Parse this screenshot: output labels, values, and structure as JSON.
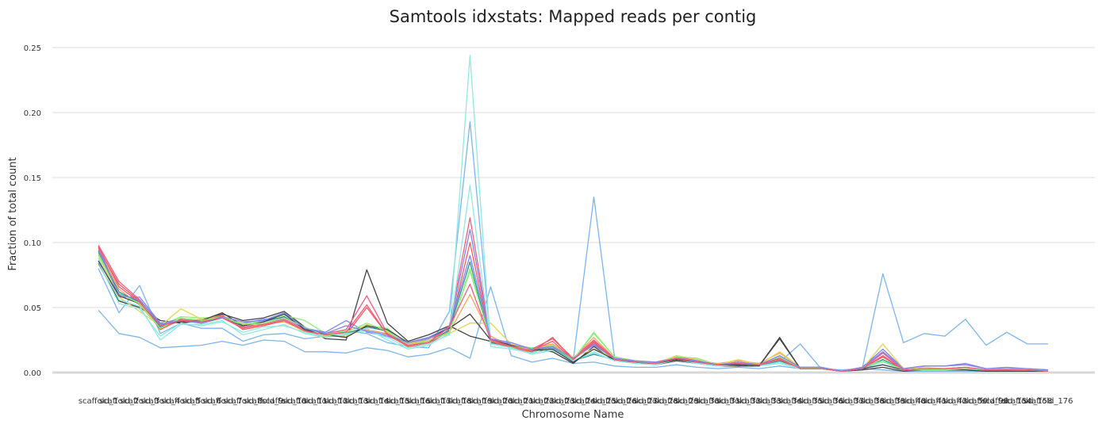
{
  "chart_data": {
    "type": "line",
    "title": "Samtools idxstats: Mapped reads per contig",
    "xlabel": "Chromosome Name",
    "ylabel": "Fraction of total count",
    "ylim": [
      0,
      0.25
    ],
    "yticks": [
      "0.00",
      "0.05",
      "0.10",
      "0.15",
      "0.20",
      "0.25"
    ],
    "grid": true,
    "legend": "none",
    "categories": [
      "scaffold_1",
      "scaffold_2",
      "scaffold_3",
      "scaffold_4",
      "scaffold_5",
      "scaffold_6",
      "scaffold_7",
      "scaffold_8",
      "scaffold_9",
      "scaffold_10",
      "scaffold_11",
      "scaffold_12",
      "scaffold_13",
      "scaffold_14",
      "scaffold_15",
      "scaffold_16",
      "scaffold_17",
      "scaffold_18",
      "scaffold_19",
      "scaffold_20",
      "scaffold_21",
      "scaffold_22",
      "scaffold_23",
      "scaffold_24",
      "scaffold_25",
      "scaffold_26",
      "scaffold_27",
      "scaffold_28",
      "scaffold_29",
      "scaffold_30",
      "scaffold_31",
      "scaffold_32",
      "scaffold_33",
      "scaffold_34",
      "scaffold_35",
      "scaffold_36",
      "scaffold_37",
      "scaffold_38",
      "scaffold_39",
      "scaffold_40",
      "scaffold_41",
      "scaffold_42",
      "scaffold_59",
      "scaffold_98",
      "scaffold_154",
      "scaffold_158",
      "scaffold_176"
    ],
    "series": [
      {
        "color": "#7cb5ec",
        "values": [
          0.048,
          0.03,
          0.027,
          0.019,
          0.02,
          0.021,
          0.024,
          0.021,
          0.025,
          0.024,
          0.016,
          0.016,
          0.015,
          0.019,
          0.017,
          0.012,
          0.014,
          0.019,
          0.011,
          0.066,
          0.013,
          0.008,
          0.011,
          0.007,
          0.008,
          0.005,
          0.004,
          0.004,
          0.006,
          0.004,
          0.003,
          0.004,
          0.003,
          0.005,
          0.003,
          0.004,
          0.001,
          0.003,
          0.002,
          0.001,
          0.001,
          0.001,
          0.001,
          0.001,
          0.001,
          0.001,
          0.001
        ]
      },
      {
        "color": "#7cb5ec",
        "values": [
          0.08,
          0.046,
          0.067,
          0.03,
          0.038,
          0.034,
          0.034,
          0.024,
          0.029,
          0.03,
          0.026,
          0.028,
          0.032,
          0.03,
          0.023,
          0.02,
          0.019,
          0.047,
          0.193,
          0.025,
          0.02,
          0.015,
          0.022,
          0.009,
          0.135,
          0.012,
          0.008,
          0.007,
          0.01,
          0.008,
          0.006,
          0.005,
          0.006,
          0.008,
          0.022,
          0.003,
          0.002,
          0.003,
          0.076,
          0.023,
          0.03,
          0.028,
          0.041,
          0.021,
          0.031,
          0.022,
          0.022
        ]
      },
      {
        "color": "#434348",
        "values": [
          0.084,
          0.055,
          0.05,
          0.04,
          0.038,
          0.04,
          0.045,
          0.04,
          0.042,
          0.047,
          0.035,
          0.026,
          0.025,
          0.079,
          0.038,
          0.024,
          0.029,
          0.036,
          0.028,
          0.024,
          0.02,
          0.018,
          0.016,
          0.007,
          0.02,
          0.009,
          0.008,
          0.006,
          0.009,
          0.007,
          0.005,
          0.005,
          0.005,
          0.027,
          0.003,
          0.003,
          0.001,
          0.002,
          0.004,
          0.001,
          0.002,
          0.002,
          0.002,
          0.001,
          0.001,
          0.001,
          0.001
        ]
      },
      {
        "color": "#90ed7d",
        "values": [
          0.092,
          0.06,
          0.055,
          0.036,
          0.043,
          0.042,
          0.043,
          0.037,
          0.04,
          0.044,
          0.04,
          0.03,
          0.032,
          0.036,
          0.034,
          0.022,
          0.025,
          0.03,
          0.08,
          0.024,
          0.021,
          0.019,
          0.021,
          0.01,
          0.031,
          0.012,
          0.009,
          0.007,
          0.012,
          0.011,
          0.006,
          0.008,
          0.006,
          0.011,
          0.004,
          0.003,
          0.001,
          0.004,
          0.008,
          0.002,
          0.002,
          0.002,
          0.003,
          0.002,
          0.002,
          0.002,
          0.001
        ]
      },
      {
        "color": "#f7a35c",
        "values": [
          0.095,
          0.064,
          0.052,
          0.034,
          0.04,
          0.041,
          0.044,
          0.034,
          0.037,
          0.039,
          0.032,
          0.029,
          0.031,
          0.033,
          0.03,
          0.022,
          0.024,
          0.031,
          0.06,
          0.028,
          0.02,
          0.018,
          0.022,
          0.011,
          0.027,
          0.011,
          0.009,
          0.008,
          0.012,
          0.009,
          0.007,
          0.009,
          0.007,
          0.015,
          0.004,
          0.004,
          0.001,
          0.004,
          0.012,
          0.002,
          0.003,
          0.003,
          0.004,
          0.002,
          0.002,
          0.002,
          0.001
        ]
      },
      {
        "color": "#8085e9",
        "values": [
          0.097,
          0.058,
          0.058,
          0.038,
          0.041,
          0.039,
          0.042,
          0.038,
          0.041,
          0.042,
          0.034,
          0.031,
          0.04,
          0.031,
          0.028,
          0.022,
          0.026,
          0.034,
          0.11,
          0.025,
          0.022,
          0.017,
          0.019,
          0.01,
          0.022,
          0.01,
          0.008,
          0.008,
          0.011,
          0.009,
          0.006,
          0.007,
          0.006,
          0.012,
          0.004,
          0.004,
          0.001,
          0.004,
          0.018,
          0.003,
          0.005,
          0.005,
          0.007,
          0.003,
          0.004,
          0.003,
          0.002
        ]
      },
      {
        "color": "#f15c80",
        "values": [
          0.098,
          0.07,
          0.056,
          0.037,
          0.039,
          0.04,
          0.043,
          0.035,
          0.038,
          0.041,
          0.033,
          0.03,
          0.033,
          0.059,
          0.03,
          0.021,
          0.024,
          0.036,
          0.119,
          0.026,
          0.021,
          0.018,
          0.026,
          0.011,
          0.025,
          0.011,
          0.009,
          0.007,
          0.012,
          0.009,
          0.006,
          0.008,
          0.006,
          0.01,
          0.003,
          0.003,
          0.001,
          0.003,
          0.015,
          0.002,
          0.003,
          0.003,
          0.004,
          0.002,
          0.002,
          0.002,
          0.001
        ]
      },
      {
        "color": "#e4d354",
        "values": [
          0.09,
          0.058,
          0.047,
          0.036,
          0.049,
          0.041,
          0.042,
          0.038,
          0.036,
          0.04,
          0.031,
          0.028,
          0.028,
          0.037,
          0.031,
          0.022,
          0.025,
          0.03,
          0.038,
          0.038,
          0.022,
          0.016,
          0.02,
          0.012,
          0.018,
          0.011,
          0.009,
          0.007,
          0.013,
          0.01,
          0.006,
          0.01,
          0.006,
          0.016,
          0.004,
          0.003,
          0.001,
          0.003,
          0.022,
          0.003,
          0.004,
          0.003,
          0.004,
          0.002,
          0.002,
          0.002,
          0.001
        ]
      },
      {
        "color": "#2b908f",
        "values": [
          0.093,
          0.062,
          0.054,
          0.035,
          0.04,
          0.038,
          0.042,
          0.036,
          0.039,
          0.043,
          0.034,
          0.029,
          0.03,
          0.035,
          0.032,
          0.021,
          0.023,
          0.033,
          0.085,
          0.023,
          0.02,
          0.017,
          0.02,
          0.009,
          0.014,
          0.01,
          0.008,
          0.007,
          0.011,
          0.008,
          0.006,
          0.007,
          0.005,
          0.009,
          0.003,
          0.003,
          0.001,
          0.003,
          0.01,
          0.002,
          0.003,
          0.003,
          0.003,
          0.002,
          0.002,
          0.002,
          0.001
        ]
      },
      {
        "color": "#f45b5b",
        "values": [
          0.096,
          0.068,
          0.055,
          0.033,
          0.041,
          0.039,
          0.044,
          0.033,
          0.036,
          0.04,
          0.032,
          0.027,
          0.029,
          0.05,
          0.029,
          0.02,
          0.022,
          0.032,
          0.1,
          0.024,
          0.019,
          0.016,
          0.027,
          0.01,
          0.023,
          0.01,
          0.008,
          0.007,
          0.011,
          0.008,
          0.006,
          0.007,
          0.006,
          0.01,
          0.003,
          0.003,
          0.001,
          0.003,
          0.012,
          0.002,
          0.003,
          0.003,
          0.003,
          0.002,
          0.002,
          0.002,
          0.001
        ]
      },
      {
        "color": "#91e8e1",
        "values": [
          0.088,
          0.056,
          0.051,
          0.025,
          0.037,
          0.037,
          0.04,
          0.029,
          0.033,
          0.037,
          0.03,
          0.027,
          0.029,
          0.034,
          0.025,
          0.018,
          0.021,
          0.03,
          0.244,
          0.02,
          0.018,
          0.015,
          0.018,
          0.009,
          0.016,
          0.009,
          0.007,
          0.006,
          0.01,
          0.007,
          0.005,
          0.006,
          0.005,
          0.008,
          0.003,
          0.003,
          0.001,
          0.003,
          0.008,
          0.002,
          0.002,
          0.002,
          0.003,
          0.002,
          0.002,
          0.002,
          0.001
        ]
      },
      {
        "color": "#91e8e1",
        "values": [
          0.085,
          0.053,
          0.049,
          0.028,
          0.038,
          0.036,
          0.039,
          0.031,
          0.035,
          0.036,
          0.031,
          0.028,
          0.03,
          0.032,
          0.027,
          0.019,
          0.022,
          0.029,
          0.144,
          0.022,
          0.019,
          0.014,
          0.017,
          0.009,
          0.015,
          0.009,
          0.007,
          0.006,
          0.01,
          0.007,
          0.005,
          0.006,
          0.005,
          0.007,
          0.003,
          0.003,
          0.001,
          0.003,
          0.006,
          0.002,
          0.002,
          0.002,
          0.002,
          0.002,
          0.002,
          0.001,
          0.001
        ]
      },
      {
        "color": "#434348",
        "values": [
          0.086,
          0.059,
          0.053,
          0.037,
          0.039,
          0.04,
          0.046,
          0.036,
          0.039,
          0.045,
          0.033,
          0.029,
          0.027,
          0.036,
          0.033,
          0.023,
          0.027,
          0.034,
          0.045,
          0.025,
          0.021,
          0.017,
          0.018,
          0.008,
          0.018,
          0.01,
          0.008,
          0.007,
          0.01,
          0.008,
          0.006,
          0.006,
          0.005,
          0.026,
          0.003,
          0.003,
          0.001,
          0.003,
          0.006,
          0.002,
          0.002,
          0.002,
          0.002,
          0.001,
          0.001,
          0.001,
          0.001
        ]
      },
      {
        "color": "#90ed7d",
        "values": [
          0.091,
          0.061,
          0.053,
          0.034,
          0.042,
          0.04,
          0.043,
          0.037,
          0.038,
          0.042,
          0.035,
          0.028,
          0.031,
          0.038,
          0.032,
          0.021,
          0.024,
          0.031,
          0.078,
          0.025,
          0.02,
          0.018,
          0.02,
          0.01,
          0.03,
          0.012,
          0.009,
          0.007,
          0.012,
          0.011,
          0.006,
          0.008,
          0.006,
          0.012,
          0.004,
          0.003,
          0.001,
          0.004,
          0.009,
          0.002,
          0.002,
          0.002,
          0.003,
          0.002,
          0.002,
          0.002,
          0.001
        ]
      },
      {
        "color": "#8085e9",
        "values": [
          0.094,
          0.06,
          0.056,
          0.037,
          0.04,
          0.038,
          0.043,
          0.039,
          0.04,
          0.046,
          0.034,
          0.03,
          0.036,
          0.032,
          0.029,
          0.023,
          0.027,
          0.035,
          0.09,
          0.026,
          0.023,
          0.018,
          0.02,
          0.011,
          0.021,
          0.011,
          0.009,
          0.008,
          0.011,
          0.009,
          0.006,
          0.008,
          0.006,
          0.013,
          0.004,
          0.004,
          0.001,
          0.004,
          0.016,
          0.003,
          0.005,
          0.005,
          0.006,
          0.003,
          0.003,
          0.003,
          0.002
        ]
      },
      {
        "color": "#f15c80",
        "values": [
          0.097,
          0.066,
          0.054,
          0.036,
          0.04,
          0.039,
          0.042,
          0.034,
          0.037,
          0.04,
          0.032,
          0.029,
          0.031,
          0.052,
          0.029,
          0.021,
          0.023,
          0.035,
          0.068,
          0.025,
          0.02,
          0.017,
          0.024,
          0.01,
          0.024,
          0.01,
          0.008,
          0.007,
          0.011,
          0.008,
          0.006,
          0.007,
          0.006,
          0.011,
          0.003,
          0.003,
          0.001,
          0.003,
          0.013,
          0.002,
          0.003,
          0.003,
          0.004,
          0.002,
          0.002,
          0.002,
          0.001
        ]
      }
    ]
  }
}
